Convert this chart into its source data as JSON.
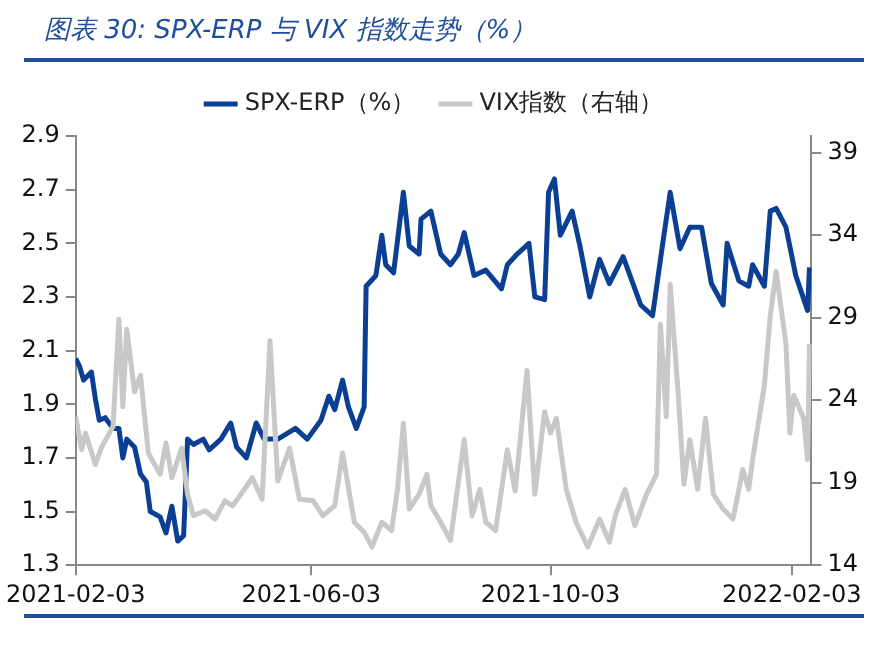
{
  "chart_data": {
    "type": "line",
    "title": "图表 30:  SPX-ERP 与 VIX 指数走势（%）",
    "legend": "top",
    "grid": false,
    "marker": "none",
    "line_style": "solid",
    "xlim": [
      "2021-02-03",
      "2022-02-13"
    ],
    "xticks": [
      "2021-02-03",
      "2021-06-03",
      "2021-10-03",
      "2022-02-03"
    ],
    "ylim": [
      1.3,
      2.9
    ],
    "yticks": [
      1.3,
      1.5,
      1.7,
      1.9,
      2.1,
      2.3,
      2.5,
      2.7,
      2.9
    ],
    "y2lim": [
      14,
      40
    ],
    "y2ticks": [
      14,
      19,
      24,
      29,
      34,
      39
    ],
    "series": [
      {
        "name": "VIX指数（右轴）",
        "color": "#c8c8c8",
        "axis": "y2",
        "x": [
          "2021-02-03",
          "2021-02-06",
          "2021-02-08",
          "2021-02-13",
          "2021-02-16",
          "2021-02-22",
          "2021-02-25",
          "2021-02-27",
          "2021-03-01",
          "2021-03-05",
          "2021-03-08",
          "2021-03-12",
          "2021-03-18",
          "2021-03-21",
          "2021-03-24",
          "2021-03-29",
          "2021-04-01",
          "2021-04-04",
          "2021-04-10",
          "2021-04-15",
          "2021-04-20",
          "2021-04-24",
          "2021-04-30",
          "2021-05-04",
          "2021-05-09",
          "2021-05-13",
          "2021-05-17",
          "2021-05-23",
          "2021-05-28",
          "2021-06-04",
          "2021-06-09",
          "2021-06-15",
          "2021-06-19",
          "2021-06-25",
          "2021-06-30",
          "2021-07-04",
          "2021-07-09",
          "2021-07-14",
          "2021-07-17",
          "2021-07-20",
          "2021-07-23",
          "2021-07-28",
          "2021-08-01",
          "2021-08-03",
          "2021-08-08",
          "2021-08-13",
          "2021-08-20",
          "2021-08-24",
          "2021-08-28",
          "2021-08-31",
          "2021-09-05",
          "2021-09-11",
          "2021-09-15",
          "2021-09-21",
          "2021-09-25",
          "2021-09-30",
          "2021-10-03",
          "2021-10-06",
          "2021-10-11",
          "2021-10-16",
          "2021-10-22",
          "2021-10-28",
          "2021-11-02",
          "2021-11-05",
          "2021-11-10",
          "2021-11-15",
          "2021-11-21",
          "2021-11-26",
          "2021-11-28",
          "2021-12-01",
          "2021-12-03",
          "2021-12-07",
          "2021-12-10",
          "2021-12-13",
          "2021-12-17",
          "2021-12-21",
          "2021-12-25",
          "2021-12-30",
          "2022-01-04",
          "2022-01-09",
          "2022-01-12",
          "2022-01-14",
          "2022-01-20",
          "2022-01-23",
          "2022-01-26",
          "2022-01-31",
          "2022-02-02",
          "2022-02-04",
          "2022-02-09",
          "2022-02-11",
          "2022-02-12"
        ],
        "values": [
          23.0,
          21.0,
          22.0,
          20.1,
          21.1,
          22.4,
          28.9,
          23.6,
          28.3,
          24.5,
          25.5,
          20.8,
          19.5,
          21.4,
          19.3,
          21.1,
          18.3,
          17.0,
          17.3,
          16.8,
          17.9,
          17.6,
          18.6,
          19.3,
          18.0,
          27.6,
          19.1,
          21.1,
          18.0,
          17.9,
          17.0,
          17.6,
          20.8,
          16.6,
          16.0,
          15.1,
          16.6,
          16.1,
          18.6,
          22.6,
          17.4,
          18.3,
          19.5,
          17.6,
          16.6,
          15.5,
          21.6,
          17.0,
          18.6,
          16.6,
          16.1,
          21.0,
          18.5,
          25.8,
          18.3,
          23.3,
          22.0,
          22.9,
          18.6,
          16.6,
          15.1,
          16.8,
          15.4,
          17.0,
          18.6,
          16.4,
          18.3,
          19.5,
          28.6,
          23.0,
          31.0,
          24.5,
          18.9,
          21.6,
          18.6,
          22.9,
          18.3,
          17.4,
          16.8,
          19.8,
          18.6,
          20.4,
          24.9,
          29.1,
          31.8,
          27.4,
          22.0,
          24.3,
          22.9,
          20.4,
          27.4
        ]
      },
      {
        "name": "SPX-ERP（%）",
        "color": "#0b3f94",
        "x": [
          "2021-02-03",
          "2021-02-05",
          "2021-02-07",
          "2021-02-11",
          "2021-02-13",
          "2021-02-15",
          "2021-02-18",
          "2021-02-22",
          "2021-02-25",
          "2021-02-27",
          "2021-03-01",
          "2021-03-05",
          "2021-03-08",
          "2021-03-11",
          "2021-03-13",
          "2021-03-18",
          "2021-03-21",
          "2021-03-24",
          "2021-03-27",
          "2021-03-30",
          "2021-04-01",
          "2021-04-04",
          "2021-04-09",
          "2021-04-12",
          "2021-04-18",
          "2021-04-23",
          "2021-04-26",
          "2021-05-01",
          "2021-05-06",
          "2021-05-10",
          "2021-05-17",
          "2021-05-26",
          "2021-06-01",
          "2021-06-08",
          "2021-06-12",
          "2021-06-15",
          "2021-06-19",
          "2021-06-22",
          "2021-06-26",
          "2021-06-30",
          "2021-07-01",
          "2021-07-06",
          "2021-07-09",
          "2021-07-11",
          "2021-07-15",
          "2021-07-20",
          "2021-07-23",
          "2021-07-28",
          "2021-07-29",
          "2021-08-03",
          "2021-08-08",
          "2021-08-13",
          "2021-08-17",
          "2021-08-20",
          "2021-08-25",
          "2021-08-31",
          "2021-09-08",
          "2021-09-11",
          "2021-09-16",
          "2021-09-22",
          "2021-09-25",
          "2021-09-30",
          "2021-10-02",
          "2021-10-05",
          "2021-10-08",
          "2021-10-14",
          "2021-10-18",
          "2021-10-23",
          "2021-10-28",
          "2021-11-02",
          "2021-11-09",
          "2021-11-15",
          "2021-11-18",
          "2021-11-24",
          "2021-11-29",
          "2021-12-03",
          "2021-12-08",
          "2021-12-13",
          "2021-12-19",
          "2021-12-24",
          "2021-12-30",
          "2022-01-01",
          "2022-01-07",
          "2022-01-12",
          "2022-01-14",
          "2022-01-20",
          "2022-01-23",
          "2022-01-26",
          "2022-01-31",
          "2022-02-05",
          "2022-02-11",
          "2022-02-12"
        ],
        "values": [
          2.07,
          2.04,
          1.99,
          2.02,
          1.92,
          1.84,
          1.85,
          1.81,
          1.81,
          1.7,
          1.77,
          1.74,
          1.64,
          1.61,
          1.5,
          1.48,
          1.42,
          1.52,
          1.39,
          1.41,
          1.77,
          1.75,
          1.77,
          1.73,
          1.77,
          1.83,
          1.74,
          1.7,
          1.83,
          1.77,
          1.77,
          1.81,
          1.77,
          1.84,
          1.93,
          1.88,
          1.99,
          1.89,
          1.81,
          1.89,
          2.34,
          2.38,
          2.53,
          2.42,
          2.39,
          2.69,
          2.49,
          2.46,
          2.59,
          2.62,
          2.46,
          2.42,
          2.46,
          2.54,
          2.38,
          2.4,
          2.33,
          2.42,
          2.46,
          2.5,
          2.3,
          2.29,
          2.69,
          2.74,
          2.53,
          2.62,
          2.49,
          2.3,
          2.44,
          2.35,
          2.45,
          2.33,
          2.27,
          2.23,
          2.49,
          2.69,
          2.48,
          2.56,
          2.56,
          2.35,
          2.27,
          2.5,
          2.36,
          2.34,
          2.42,
          2.34,
          2.62,
          2.63,
          2.56,
          2.38,
          2.25,
          2.41
        ]
      }
    ]
  }
}
